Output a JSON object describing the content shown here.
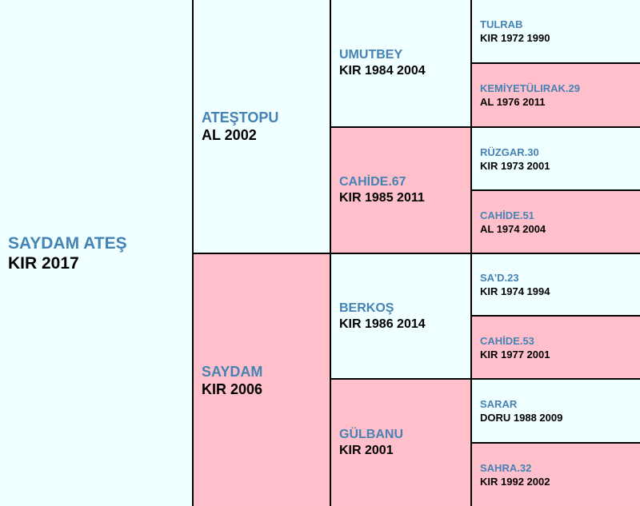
{
  "horse": {
    "name": "SAYDAM ATEŞ",
    "info": "KIR 2017",
    "sex": "male"
  },
  "sire": {
    "name": "ATEŞTOPU",
    "info": "AL 2002",
    "sex": "male"
  },
  "dam": {
    "name": "SAYDAM",
    "info": "KIR 2006",
    "sex": "female"
  },
  "sire_sire": {
    "name": "UMUTBEY",
    "info": "KIR 1984 2004",
    "sex": "male"
  },
  "sire_dam": {
    "name": "CAHİDE.67",
    "info": "KIR 1985 2011",
    "sex": "female"
  },
  "dam_sire": {
    "name": "BERKOŞ",
    "info": "KIR 1986 2014",
    "sex": "male"
  },
  "dam_dam": {
    "name": "GÜLBANU",
    "info": "KIR 2001",
    "sex": "female"
  },
  "ggen": [
    {
      "name": "TULRAB",
      "info": "KIR 1972 1990",
      "sex": "male"
    },
    {
      "name": "KEMİYETÜLIRAK.29",
      "info": "AL 1976 2011",
      "sex": "female"
    },
    {
      "name": "RÜZGAR.30",
      "info": "KIR 1973 2001",
      "sex": "male"
    },
    {
      "name": "CAHİDE.51",
      "info": "AL 1974 2004",
      "sex": "female"
    },
    {
      "name": "SA'D.23",
      "info": "KIR 1974 1994",
      "sex": "male"
    },
    {
      "name": "CAHİDE.53",
      "info": "KIR 1977 2001",
      "sex": "female"
    },
    {
      "name": "SARAR",
      "info": "DORU 1988 2009",
      "sex": "male"
    },
    {
      "name": "SAHRA.32",
      "info": "KIR 1992 2002",
      "sex": "female"
    }
  ],
  "colors": {
    "male": "#f0ffff",
    "female": "#ffc0cb",
    "name": "#4682b4",
    "border": "#000000"
  }
}
